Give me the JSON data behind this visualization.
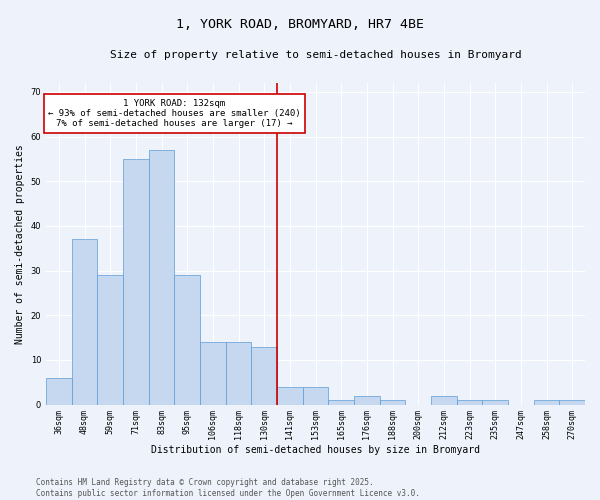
{
  "title": "1, YORK ROAD, BROMYARD, HR7 4BE",
  "subtitle": "Size of property relative to semi-detached houses in Bromyard",
  "xlabel": "Distribution of semi-detached houses by size in Bromyard",
  "ylabel": "Number of semi-detached properties",
  "categories": [
    "36sqm",
    "48sqm",
    "59sqm",
    "71sqm",
    "83sqm",
    "95sqm",
    "106sqm",
    "118sqm",
    "130sqm",
    "141sqm",
    "153sqm",
    "165sqm",
    "176sqm",
    "188sqm",
    "200sqm",
    "212sqm",
    "223sqm",
    "235sqm",
    "247sqm",
    "258sqm",
    "270sqm"
  ],
  "values": [
    6,
    37,
    29,
    55,
    57,
    29,
    14,
    14,
    13,
    4,
    4,
    1,
    2,
    1,
    0,
    2,
    1,
    1,
    0,
    1,
    1
  ],
  "bar_color": "#c5d8f0",
  "bar_edge_color": "#5b9bd5",
  "background_color": "#eef3fb",
  "grid_color": "#ffffff",
  "property_line_color": "#cc0000",
  "annotation_text": "1 YORK ROAD: 132sqm\n← 93% of semi-detached houses are smaller (240)\n7% of semi-detached houses are larger (17) →",
  "annotation_box_color": "#cc0000",
  "ylim": [
    0,
    72
  ],
  "yticks": [
    0,
    10,
    20,
    30,
    40,
    50,
    60,
    70
  ],
  "footer_text": "Contains HM Land Registry data © Crown copyright and database right 2025.\nContains public sector information licensed under the Open Government Licence v3.0.",
  "title_fontsize": 9.5,
  "subtitle_fontsize": 8,
  "axis_label_fontsize": 7,
  "tick_fontsize": 6,
  "annotation_fontsize": 6.5,
  "footer_fontsize": 5.5
}
